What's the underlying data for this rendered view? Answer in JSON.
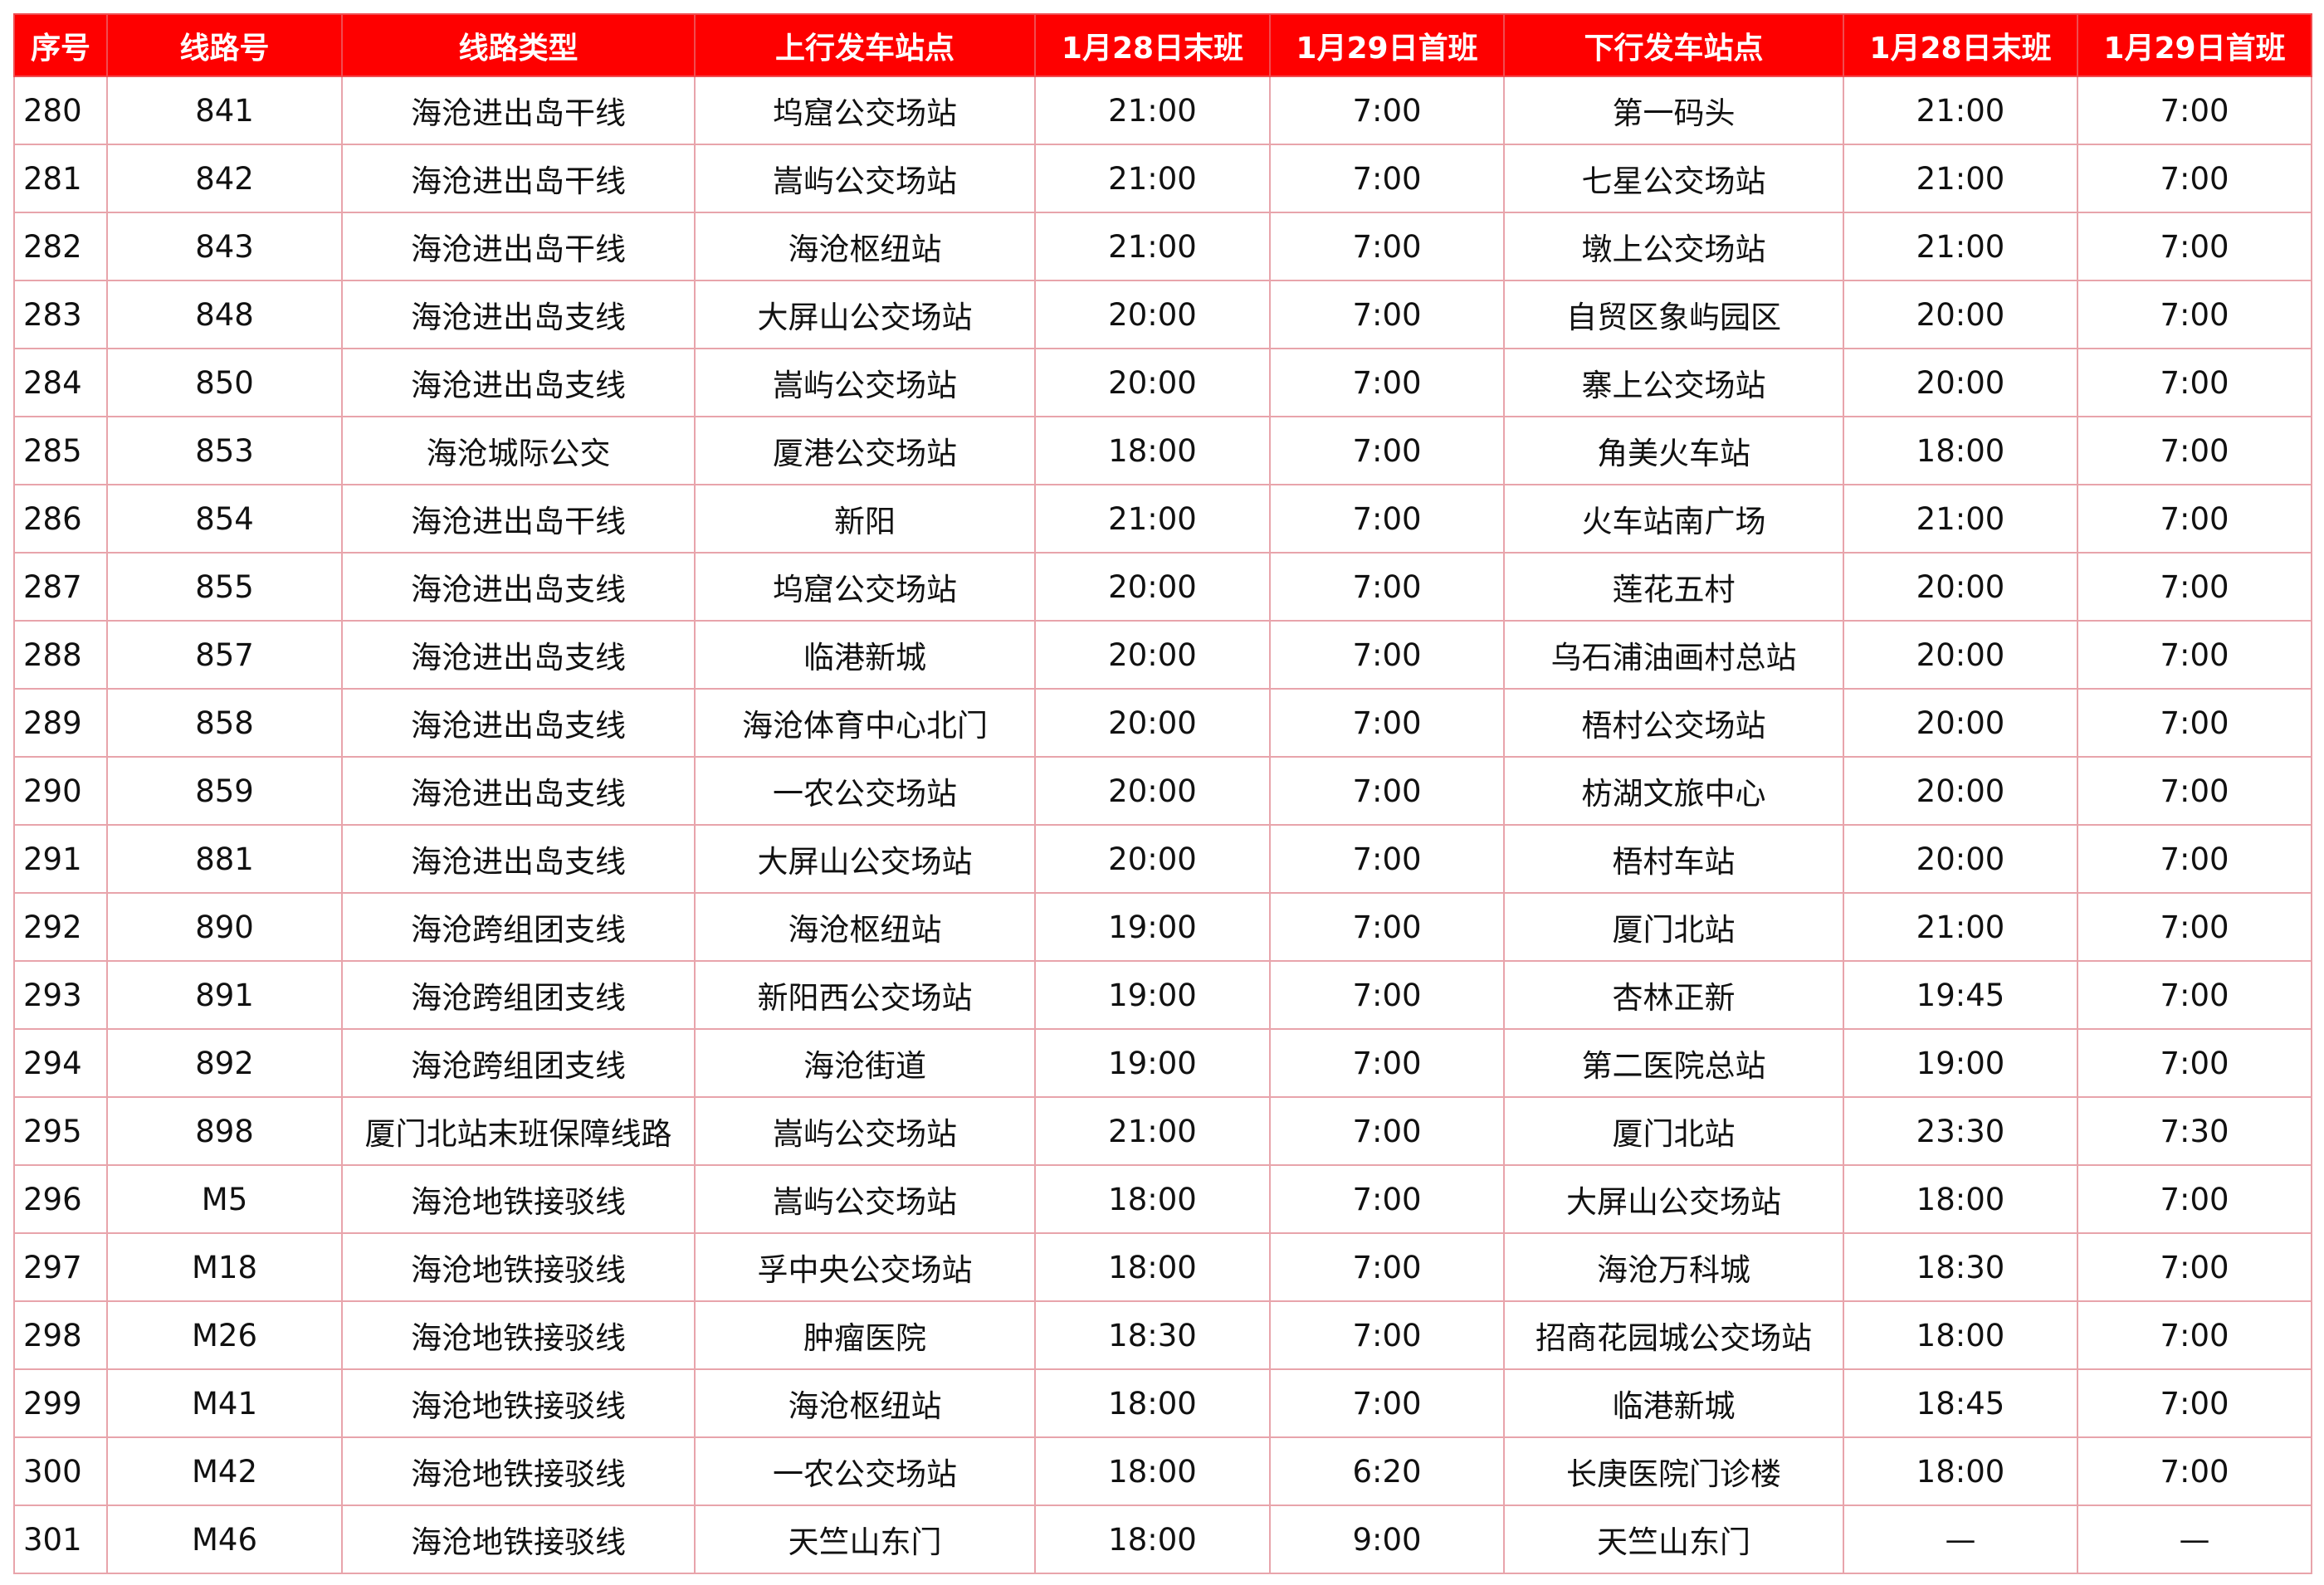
{
  "table": {
    "headers": [
      "序号",
      "线路号",
      "线路类型",
      "上行发车站点",
      "1月28日末班",
      "1月29日首班",
      "下行发车站点",
      "1月28日末班",
      "1月29日首班"
    ],
    "rows": [
      [
        "280",
        "841",
        "海沧进出岛干线",
        "坞窟公交场站",
        "21:00",
        "7:00",
        "第一码头",
        "21:00",
        "7:00"
      ],
      [
        "281",
        "842",
        "海沧进出岛干线",
        "嵩屿公交场站",
        "21:00",
        "7:00",
        "七星公交场站",
        "21:00",
        "7:00"
      ],
      [
        "282",
        "843",
        "海沧进出岛干线",
        "海沧枢纽站",
        "21:00",
        "7:00",
        "墩上公交场站",
        "21:00",
        "7:00"
      ],
      [
        "283",
        "848",
        "海沧进出岛支线",
        "大屏山公交场站",
        "20:00",
        "7:00",
        "自贸区象屿园区",
        "20:00",
        "7:00"
      ],
      [
        "284",
        "850",
        "海沧进出岛支线",
        "嵩屿公交场站",
        "20:00",
        "7:00",
        "寨上公交场站",
        "20:00",
        "7:00"
      ],
      [
        "285",
        "853",
        "海沧城际公交",
        "厦港公交场站",
        "18:00",
        "7:00",
        "角美火车站",
        "18:00",
        "7:00"
      ],
      [
        "286",
        "854",
        "海沧进出岛干线",
        "新阳",
        "21:00",
        "7:00",
        "火车站南广场",
        "21:00",
        "7:00"
      ],
      [
        "287",
        "855",
        "海沧进出岛支线",
        "坞窟公交场站",
        "20:00",
        "7:00",
        "莲花五村",
        "20:00",
        "7:00"
      ],
      [
        "288",
        "857",
        "海沧进出岛支线",
        "临港新城",
        "20:00",
        "7:00",
        "乌石浦油画村总站",
        "20:00",
        "7:00"
      ],
      [
        "289",
        "858",
        "海沧进出岛支线",
        "海沧体育中心北门",
        "20:00",
        "7:00",
        "梧村公交场站",
        "20:00",
        "7:00"
      ],
      [
        "290",
        "859",
        "海沧进出岛支线",
        "一农公交场站",
        "20:00",
        "7:00",
        "枋湖文旅中心",
        "20:00",
        "7:00"
      ],
      [
        "291",
        "881",
        "海沧进出岛支线",
        "大屏山公交场站",
        "20:00",
        "7:00",
        "梧村车站",
        "20:00",
        "7:00"
      ],
      [
        "292",
        "890",
        "海沧跨组团支线",
        "海沧枢纽站",
        "19:00",
        "7:00",
        "厦门北站",
        "21:00",
        "7:00"
      ],
      [
        "293",
        "891",
        "海沧跨组团支线",
        "新阳西公交场站",
        "19:00",
        "7:00",
        "杏林正新",
        "19:45",
        "7:00"
      ],
      [
        "294",
        "892",
        "海沧跨组团支线",
        "海沧街道",
        "19:00",
        "7:00",
        "第二医院总站",
        "19:00",
        "7:00"
      ],
      [
        "295",
        "898",
        "厦门北站末班保障线路",
        "嵩屿公交场站",
        "21:00",
        "7:00",
        "厦门北站",
        "23:30",
        "7:30"
      ],
      [
        "296",
        "M5",
        "海沧地铁接驳线",
        "嵩屿公交场站",
        "18:00",
        "7:00",
        "大屏山公交场站",
        "18:00",
        "7:00"
      ],
      [
        "297",
        "M18",
        "海沧地铁接驳线",
        "孚中央公交场站",
        "18:00",
        "7:00",
        "海沧万科城",
        "18:30",
        "7:00"
      ],
      [
        "298",
        "M26",
        "海沧地铁接驳线",
        "肿瘤医院",
        "18:30",
        "7:00",
        "招商花园城公交场站",
        "18:00",
        "7:00"
      ],
      [
        "299",
        "M41",
        "海沧地铁接驳线",
        "海沧枢纽站",
        "18:00",
        "7:00",
        "临港新城",
        "18:45",
        "7:00"
      ],
      [
        "300",
        "M42",
        "海沧地铁接驳线",
        "一农公交场站",
        "18:00",
        "6:20",
        "长庚医院门诊楼",
        "18:00",
        "7:00"
      ],
      [
        "301",
        "M46",
        "海沧地铁接驳线",
        "天竺山东门",
        "18:00",
        "9:00",
        "天竺山东门",
        "—",
        "—"
      ]
    ]
  },
  "colors": {
    "header_bg": "#fe0000",
    "header_text": "#ffffff",
    "border": "#e8a4ab"
  }
}
